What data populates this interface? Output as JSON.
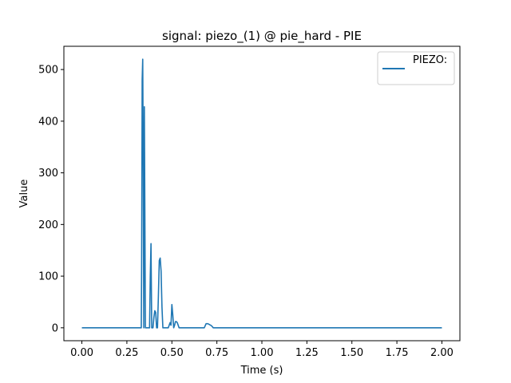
{
  "chart_data": {
    "type": "line",
    "title": "signal: piezo_(1) @ pie_hard - PIE",
    "xlabel": "Time (s)",
    "ylabel": "Value",
    "xlim": [
      -0.1,
      2.1
    ],
    "ylim": [
      -25,
      545
    ],
    "xticks": [
      0.0,
      0.25,
      0.5,
      0.75,
      1.0,
      1.25,
      1.5,
      1.75,
      2.0
    ],
    "xtick_labels": [
      "0.00",
      "0.25",
      "0.50",
      "0.75",
      "1.00",
      "1.25",
      "1.50",
      "1.75",
      "2.00"
    ],
    "yticks": [
      0,
      100,
      200,
      300,
      400,
      500
    ],
    "ytick_labels": [
      "0",
      "100",
      "200",
      "300",
      "400",
      "500"
    ],
    "grid": false,
    "legend_position": "top-right",
    "line_color": "#1f77b4",
    "series": [
      {
        "name": "PIEZO:",
        "x": [
          0.0,
          0.33,
          0.332,
          0.335,
          0.338,
          0.341,
          0.344,
          0.347,
          0.35,
          0.353,
          0.36,
          0.37,
          0.376,
          0.38,
          0.384,
          0.388,
          0.395,
          0.4,
          0.405,
          0.41,
          0.415,
          0.42,
          0.425,
          0.43,
          0.435,
          0.44,
          0.445,
          0.45,
          0.46,
          0.47,
          0.48,
          0.49,
          0.495,
          0.5,
          0.505,
          0.51,
          0.515,
          0.52,
          0.525,
          0.53,
          0.54,
          0.545,
          0.55,
          0.56,
          0.6,
          0.64,
          0.68,
          0.69,
          0.7,
          0.71,
          0.72,
          0.73,
          0.74,
          2.0
        ],
        "y": [
          0,
          0,
          120,
          480,
          520,
          300,
          0,
          428,
          220,
          0,
          0,
          0,
          0,
          100,
          163,
          0,
          0,
          20,
          33,
          30,
          0,
          0,
          60,
          130,
          135,
          110,
          40,
          0,
          0,
          0,
          0,
          10,
          5,
          45,
          25,
          0,
          5,
          12,
          12,
          10,
          0,
          0,
          0,
          0,
          0,
          0,
          0,
          8,
          8,
          6,
          4,
          0,
          0,
          0
        ]
      }
    ]
  }
}
